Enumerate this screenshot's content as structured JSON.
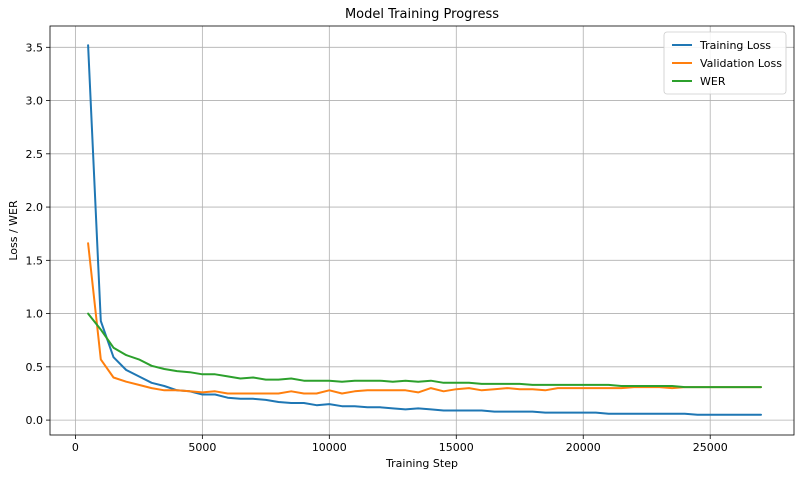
{
  "chart_data": {
    "type": "line",
    "title": "Model Training Progress",
    "xlabel": "Training Step",
    "ylabel": "Loss / WER",
    "xlim": [
      -1000,
      28300
    ],
    "ylim": [
      -0.14,
      3.7
    ],
    "xticks": [
      0,
      5000,
      10000,
      15000,
      20000,
      25000
    ],
    "yticks": [
      0.0,
      0.5,
      1.0,
      1.5,
      2.0,
      2.5,
      3.0,
      3.5
    ],
    "ytick_labels": [
      "0.0",
      "0.5",
      "1.0",
      "1.5",
      "2.0",
      "2.5",
      "3.0",
      "3.5"
    ],
    "grid": true,
    "legend_position": "top-right",
    "x": [
      500,
      1000,
      1500,
      2000,
      2500,
      3000,
      3500,
      4000,
      4500,
      5000,
      5500,
      6000,
      6500,
      7000,
      7500,
      8000,
      8500,
      9000,
      9500,
      10000,
      10500,
      11000,
      11500,
      12000,
      12500,
      13000,
      13500,
      14000,
      14500,
      15000,
      15500,
      16000,
      16500,
      17000,
      17500,
      18000,
      18500,
      19000,
      19500,
      20000,
      20500,
      21000,
      21500,
      22000,
      22500,
      23000,
      23500,
      24000,
      24500,
      25000,
      25500,
      26000,
      26500,
      27000
    ],
    "series": [
      {
        "name": "Training Loss",
        "color": "#1f77b4",
        "values": [
          3.52,
          0.93,
          0.59,
          0.47,
          0.41,
          0.35,
          0.32,
          0.28,
          0.27,
          0.24,
          0.24,
          0.21,
          0.2,
          0.2,
          0.19,
          0.17,
          0.16,
          0.16,
          0.14,
          0.15,
          0.13,
          0.13,
          0.12,
          0.12,
          0.11,
          0.1,
          0.11,
          0.1,
          0.09,
          0.09,
          0.09,
          0.09,
          0.08,
          0.08,
          0.08,
          0.08,
          0.07,
          0.07,
          0.07,
          0.07,
          0.07,
          0.06,
          0.06,
          0.06,
          0.06,
          0.06,
          0.06,
          0.06,
          0.05,
          0.05,
          0.05,
          0.05,
          0.05,
          0.05
        ]
      },
      {
        "name": "Validation Loss",
        "color": "#ff7f0e",
        "values": [
          1.66,
          0.57,
          0.4,
          0.36,
          0.33,
          0.3,
          0.28,
          0.28,
          0.27,
          0.26,
          0.27,
          0.25,
          0.25,
          0.25,
          0.25,
          0.25,
          0.27,
          0.25,
          0.25,
          0.28,
          0.25,
          0.27,
          0.28,
          0.28,
          0.28,
          0.28,
          0.26,
          0.3,
          0.27,
          0.29,
          0.3,
          0.28,
          0.29,
          0.3,
          0.29,
          0.29,
          0.28,
          0.3,
          0.3,
          0.3,
          0.3,
          0.3,
          0.3,
          0.31,
          0.31,
          0.31,
          0.3,
          0.31,
          0.31,
          0.31,
          0.31,
          0.31,
          0.31,
          0.31
        ]
      },
      {
        "name": "WER",
        "color": "#2ca02c",
        "values": [
          1.0,
          0.85,
          0.68,
          0.61,
          0.57,
          0.51,
          0.48,
          0.46,
          0.45,
          0.43,
          0.43,
          0.41,
          0.39,
          0.4,
          0.38,
          0.38,
          0.39,
          0.37,
          0.37,
          0.37,
          0.36,
          0.37,
          0.37,
          0.37,
          0.36,
          0.37,
          0.36,
          0.37,
          0.35,
          0.35,
          0.35,
          0.34,
          0.34,
          0.34,
          0.34,
          0.33,
          0.33,
          0.33,
          0.33,
          0.33,
          0.33,
          0.33,
          0.32,
          0.32,
          0.32,
          0.32,
          0.32,
          0.31,
          0.31,
          0.31,
          0.31,
          0.31,
          0.31,
          0.31
        ]
      }
    ]
  }
}
